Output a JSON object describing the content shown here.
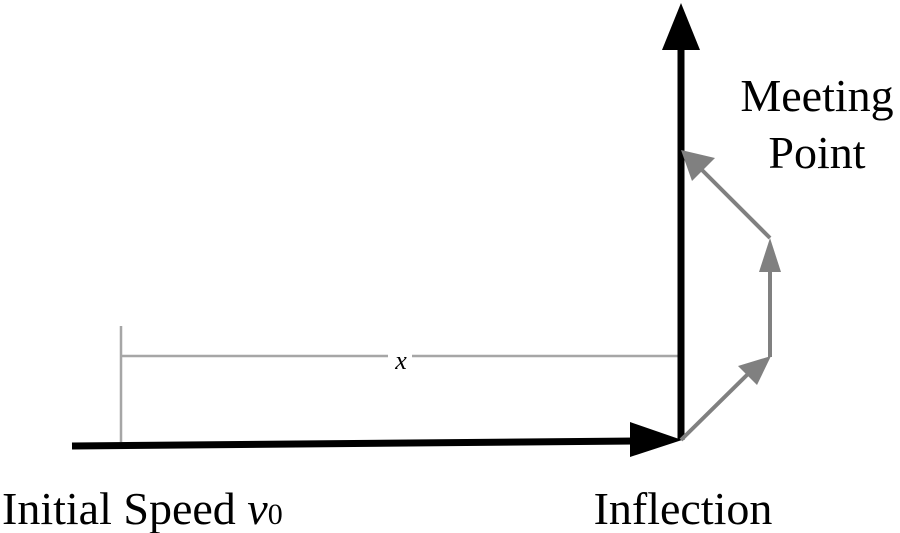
{
  "labels": {
    "meeting_line1": "Meeting",
    "meeting_line2": "Point",
    "inflection": "Inflection",
    "initial_speed_prefix": "Initial Speed ",
    "initial_speed_var": "v",
    "initial_speed_sub": "0",
    "distance": "x"
  },
  "colors": {
    "main_path": "#000000",
    "trajectory": "#808080",
    "distance_marker": "#a6a6a6",
    "background": "#ffffff"
  }
}
